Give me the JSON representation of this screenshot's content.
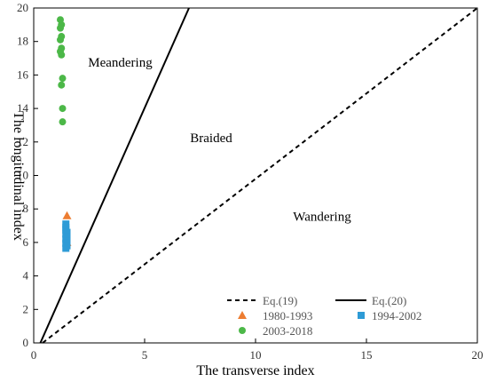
{
  "chart_data": {
    "type": "scatter",
    "xlabel": "The transverse index",
    "ylabel": "The longitudinal index",
    "xlim": [
      0,
      20
    ],
    "ylim": [
      0,
      20
    ],
    "x_ticks": [
      0,
      5,
      10,
      15,
      20
    ],
    "y_ticks": [
      0,
      2,
      4,
      6,
      8,
      10,
      12,
      14,
      16,
      18,
      20
    ],
    "grid": false,
    "legend": "bottom-right",
    "regions": [
      {
        "label": "Meandering",
        "x": 3.9,
        "y": 16.5
      },
      {
        "label": "Braided",
        "x": 8.0,
        "y": 12.0
      },
      {
        "label": "Wandering",
        "x": 13.0,
        "y": 7.3
      }
    ],
    "lines": [
      {
        "name": "Eq.(19)",
        "style": "dashed",
        "color": "#000000",
        "points": [
          [
            0.4,
            0
          ],
          [
            20,
            20
          ]
        ]
      },
      {
        "name": "Eq.(20)",
        "style": "solid",
        "color": "#000000",
        "points": [
          [
            0.3,
            0
          ],
          [
            7.0,
            20
          ]
        ]
      }
    ],
    "series": [
      {
        "name": "1980-1993",
        "marker": "triangle",
        "color": "#ED7D31",
        "points": [
          [
            1.5,
            7.6
          ],
          [
            1.5,
            6.0
          ]
        ]
      },
      {
        "name": "1994-2002",
        "marker": "square",
        "color": "#2E9BD6",
        "points": [
          [
            1.45,
            7.1
          ],
          [
            1.45,
            6.9
          ],
          [
            1.45,
            6.75
          ],
          [
            1.5,
            6.6
          ],
          [
            1.45,
            6.5
          ],
          [
            1.5,
            6.35
          ],
          [
            1.45,
            6.2
          ],
          [
            1.5,
            6.1
          ],
          [
            1.45,
            5.95
          ],
          [
            1.5,
            5.8
          ],
          [
            1.45,
            5.65
          ]
        ]
      },
      {
        "name": "2003-2018",
        "marker": "circle",
        "color": "#4CB848",
        "points": [
          [
            1.2,
            19.3
          ],
          [
            1.25,
            19.0
          ],
          [
            1.2,
            18.8
          ],
          [
            1.25,
            18.3
          ],
          [
            1.2,
            18.1
          ],
          [
            1.25,
            17.6
          ],
          [
            1.2,
            17.4
          ],
          [
            1.25,
            17.2
          ],
          [
            1.3,
            15.8
          ],
          [
            1.25,
            15.4
          ],
          [
            1.3,
            14.0
          ],
          [
            1.3,
            13.2
          ]
        ]
      }
    ]
  }
}
